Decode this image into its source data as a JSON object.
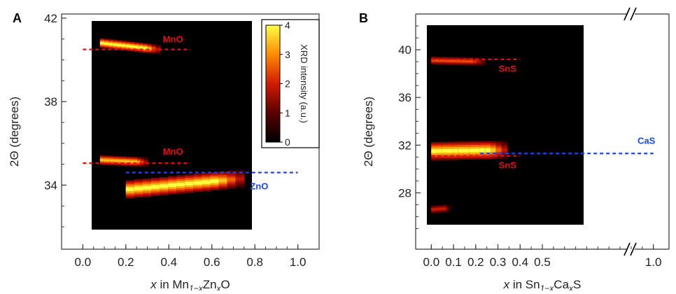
{
  "colors": {
    "heatmap_background": "#000000",
    "low": "#8b0000",
    "mid": "#ff2a00",
    "high": "#ffff2e",
    "reference_red": "#e01010",
    "reference_blue": "#1a45ff",
    "axis": "#333333"
  },
  "chart_data": [
    {
      "panel_label": "A",
      "type": "heatmap",
      "xlabel": "x in Mn1−xZnxO",
      "xlabel_parts": {
        "italic_x": "x",
        "t1": " in Mn",
        "s1": "1−x",
        "t2": "Zn",
        "s2": "x",
        "t3": "O"
      },
      "ylabel": "2Θ (degrees)",
      "xlim": [
        -0.05,
        1.05
      ],
      "ylim": [
        31.8,
        42.4
      ],
      "xticks": [
        "0.0",
        "0.2",
        "0.4",
        "0.6",
        "0.8",
        "1.0"
      ],
      "yticks": [
        "34",
        "38",
        "42"
      ],
      "heatmap_x_range": [
        0.08,
        0.75
      ],
      "heatmap_y_range": [
        31.8,
        42.0
      ],
      "bands": [
        {
          "phase": "MnO",
          "x_range": [
            0.08,
            0.36
          ],
          "two_theta_start": 40.8,
          "two_theta_end": 40.5,
          "max_intensity": 4
        },
        {
          "phase": "MnO",
          "x_range": [
            0.08,
            0.3
          ],
          "two_theta_start": 35.2,
          "two_theta_end": 35.1,
          "max_intensity": 3.5
        },
        {
          "phase": "ZnO",
          "x_range": [
            0.2,
            0.75
          ],
          "two_theta_start": 33.8,
          "two_theta_end": 34.3,
          "max_intensity": 4
        }
      ],
      "reference_lines": [
        {
          "label": "MnO",
          "two_theta": 40.5,
          "x_range": [
            0.0,
            0.5
          ],
          "color": "red"
        },
        {
          "label": "MnO",
          "two_theta": 35.05,
          "x_range": [
            0.0,
            0.5
          ],
          "color": "red"
        },
        {
          "label": "ZnO",
          "two_theta": 34.6,
          "x_range": [
            0.2,
            1.0
          ],
          "color": "blue"
        }
      ],
      "colorbar": {
        "label": "XRD intensity (a.u.)",
        "ticks": [
          "0",
          "1",
          "2",
          "3",
          "4"
        ],
        "range": [
          0,
          4
        ]
      }
    },
    {
      "panel_label": "B",
      "type": "heatmap",
      "xlabel": "x in Sn1−xCaxS",
      "xlabel_parts": {
        "italic_x": "x",
        "t1": " in Sn",
        "s1": "1−x",
        "t2": "Ca",
        "s2": "x",
        "t3": "S"
      },
      "ylabel": "2Θ (degrees)",
      "xlim": [
        -0.02,
        1.02
      ],
      "ylim": [
        24.8,
        43.0
      ],
      "xticks": [
        "0.0",
        "0.1",
        "0.2",
        "0.3",
        "0.4",
        "0.5",
        "1.0"
      ],
      "yticks": [
        "28",
        "32",
        "36",
        "40"
      ],
      "axis_break": true,
      "heatmap_x_range": [
        0.0,
        0.34
      ],
      "heatmap_y_range": [
        25.0,
        42.0
      ],
      "bands": [
        {
          "phase": "SnS",
          "x_range": [
            0.0,
            0.24
          ],
          "two_theta_start": 39.1,
          "two_theta_end": 39.0,
          "max_intensity": 2.5
        },
        {
          "phase": "SnS/CaS",
          "x_range": [
            0.0,
            0.34
          ],
          "two_theta_start": 31.5,
          "two_theta_end": 31.6,
          "max_intensity": 4
        },
        {
          "phase": "SnS",
          "x_range": [
            0.0,
            0.08
          ],
          "two_theta_start": 26.6,
          "two_theta_end": 26.7,
          "max_intensity": 2
        }
      ],
      "reference_lines": [
        {
          "label": "SnS",
          "two_theta": 39.2,
          "x_range": [
            0.0,
            0.4
          ],
          "color": "red"
        },
        {
          "label": "SnS",
          "two_theta": 31.1,
          "x_range": [
            0.0,
            0.4
          ],
          "color": "red"
        },
        {
          "label": "CaS",
          "two_theta": 31.3,
          "x_range": [
            0.22,
            1.0
          ],
          "color": "blue"
        }
      ]
    }
  ]
}
